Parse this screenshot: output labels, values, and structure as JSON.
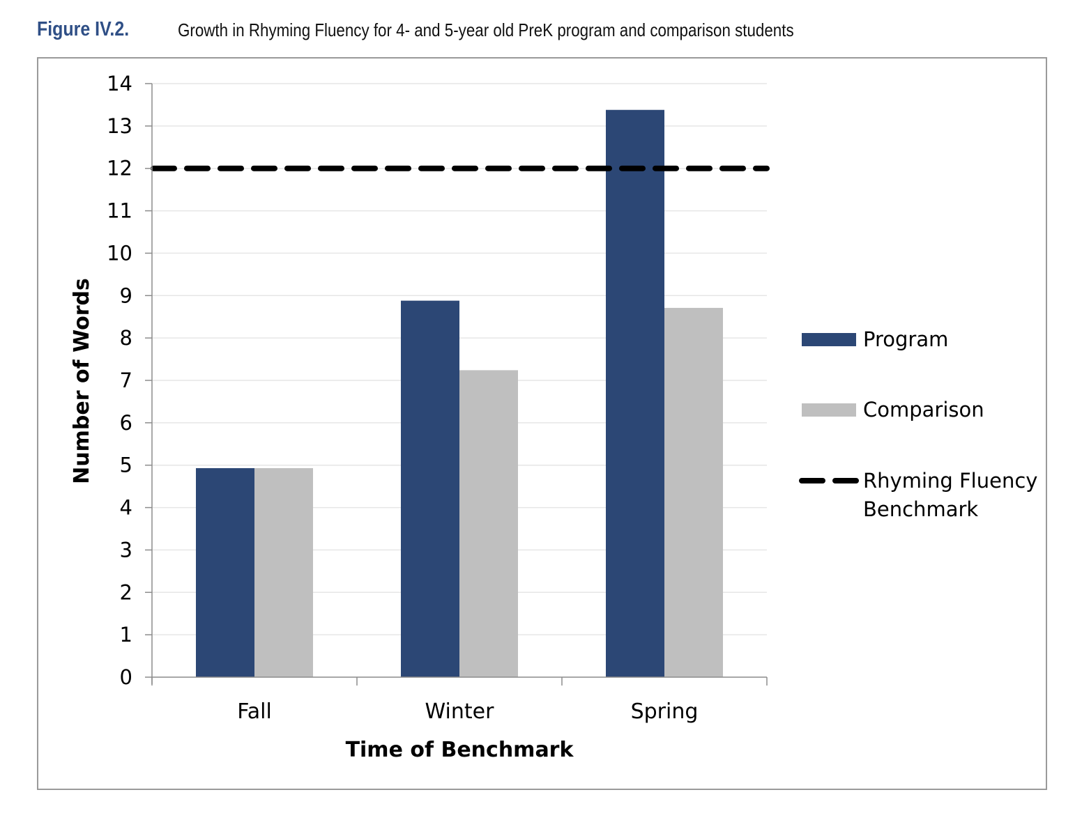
{
  "figure": {
    "label": "Figure IV.2.",
    "title": "Growth in Rhyming Fluency for 4- and 5-year old PreK program and comparison students"
  },
  "colors": {
    "program": "#2c4775",
    "comparison": "#bfbfbf",
    "benchmark": "#000000",
    "grid": "#e6e6e6",
    "axis": "#8c8c8c"
  },
  "chart_data": {
    "type": "bar",
    "categories": [
      "Fall",
      "Winter",
      "Spring"
    ],
    "series": [
      {
        "name": "Program",
        "values": [
          4.93,
          8.88,
          13.38
        ]
      },
      {
        "name": "Comparison",
        "values": [
          4.93,
          7.24,
          8.71
        ]
      }
    ],
    "benchmark": {
      "name": "Rhyming Fluency Benchmark",
      "value": 12,
      "style": "dashed"
    },
    "xlabel": "Time of Benchmark",
    "ylabel": "Number of Words",
    "ylim": [
      0,
      14
    ],
    "yticks": [
      0,
      1,
      2,
      3,
      4,
      5,
      6,
      7,
      8,
      9,
      10,
      11,
      12,
      13,
      14
    ],
    "grid": true,
    "legend": {
      "placement": "right",
      "entries": [
        "Program",
        "Comparison",
        "Rhyming Fluency Benchmark"
      ],
      "benchmark_lines": [
        "Rhyming Fluency",
        "Benchmark"
      ]
    }
  }
}
